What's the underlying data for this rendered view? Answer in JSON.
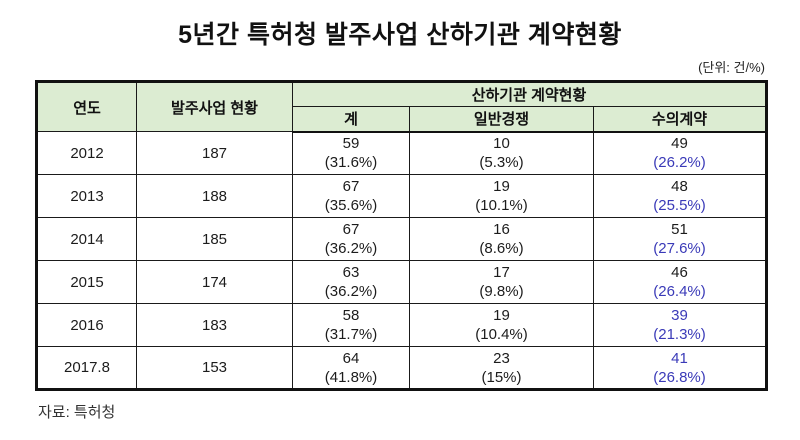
{
  "title": "5년간 특허청 발주사업 산하기관 계약현황",
  "unit_note": "(단위: 건/%)",
  "source": "자료: 특허청",
  "colors": {
    "header_bg": "#dcecd2",
    "highlight_blue": "#3a3ab8",
    "border": "#1a1a1a"
  },
  "table": {
    "headers": {
      "year": "연도",
      "projects": "발주사업 현황",
      "group": "산하기관 계약현황",
      "total": "계",
      "open_bid": "일반경쟁",
      "negotiated": "수의계약"
    },
    "rows": [
      {
        "year": "2012",
        "projects": "187",
        "total": {
          "count": "59",
          "pct": "(31.6%)"
        },
        "open": {
          "count": "10",
          "pct": "(5.3%)"
        },
        "negotiated": {
          "count": "49",
          "pct": "(26.2%)"
        }
      },
      {
        "year": "2013",
        "projects": "188",
        "total": {
          "count": "67",
          "pct": "(35.6%)"
        },
        "open": {
          "count": "19",
          "pct": "(10.1%)"
        },
        "negotiated": {
          "count": "48",
          "pct": "(25.5%)"
        }
      },
      {
        "year": "2014",
        "projects": "185",
        "total": {
          "count": "67",
          "pct": "(36.2%)"
        },
        "open": {
          "count": "16",
          "pct": "(8.6%)"
        },
        "negotiated": {
          "count": "51",
          "pct": "(27.6%)"
        }
      },
      {
        "year": "2015",
        "projects": "174",
        "total": {
          "count": "63",
          "pct": "(36.2%)"
        },
        "open": {
          "count": "17",
          "pct": "(9.8%)"
        },
        "negotiated": {
          "count": "46",
          "pct": "(26.4%)"
        }
      },
      {
        "year": "2016",
        "projects": "183",
        "total": {
          "count": "58",
          "pct": "(31.7%)"
        },
        "open": {
          "count": "19",
          "pct": "(10.4%)"
        },
        "negotiated": {
          "count": "39",
          "pct": "(21.3%)"
        }
      },
      {
        "year": "2017.8",
        "projects": "153",
        "total": {
          "count": "64",
          "pct": "(41.8%)"
        },
        "open": {
          "count": "23",
          "pct": "(15%)"
        },
        "negotiated": {
          "count": "41",
          "pct": "(26.8%)"
        }
      }
    ]
  }
}
